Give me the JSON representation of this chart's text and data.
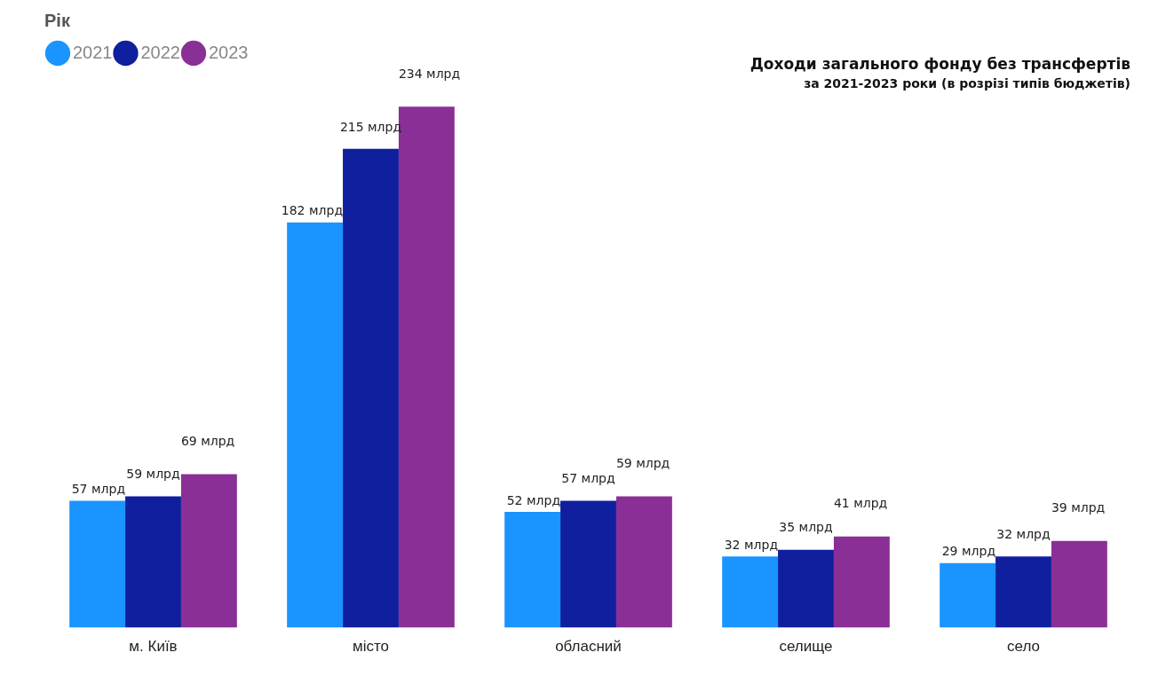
{
  "chart_data": {
    "type": "bar",
    "title": "Доходи загального фонду без трансфертів",
    "subtitle": "за 2021-2023 роки (в розрізі типів бюджетів)",
    "legend_title": "Рік",
    "legend": "top left",
    "grid": false,
    "tick_labels": "x",
    "marker": "circle",
    "categories": [
      "м. Київ",
      "місто",
      "обласний",
      "селище",
      "село"
    ],
    "series": [
      {
        "name": "2021",
        "color": "#1a94ff",
        "values": [
          57,
          182,
          52,
          32,
          29
        ],
        "value_labels": [
          "57 млрд",
          "182 млрд",
          "52 млрд",
          "32 млрд",
          "29 млрд"
        ]
      },
      {
        "name": "2022",
        "color": "#0f1f9e",
        "values": [
          59,
          215,
          57,
          35,
          32
        ],
        "value_labels": [
          "59 млрд",
          "215 млрд",
          "57 млрд",
          "35 млрд",
          "32 млрд"
        ]
      },
      {
        "name": "2023",
        "color": "#8a2f96",
        "values": [
          69,
          234,
          59,
          41,
          39
        ],
        "value_labels": [
          "69 млрд",
          "234 млрд",
          "59 млрд",
          "41 млрд",
          "39 млрд"
        ]
      }
    ]
  }
}
